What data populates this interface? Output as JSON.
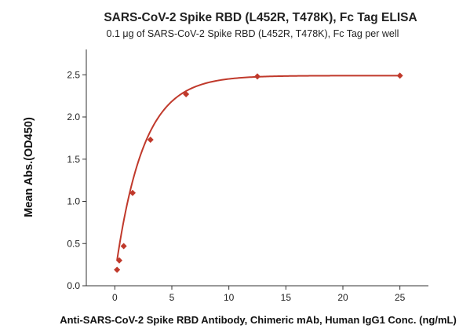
{
  "chart_data": {
    "type": "scatter",
    "title": "SARS-CoV-2 Spike RBD (L452R, T478K), Fc Tag ELISA",
    "subtitle": "0.1 μg of SARS-CoV-2 Spike RBD (L452R, T478K), Fc Tag per well",
    "xlabel": "Anti-SARS-CoV-2 Spike RBD Antibody, Chimeric mAb, Human IgG1 Conc. (ng/mL)",
    "ylabel": "Mean Abs.(OD450)",
    "xlim": [
      -2.5,
      27.5
    ],
    "ylim": [
      0,
      2.8
    ],
    "x_ticks": [
      0,
      5,
      10,
      15,
      20,
      25
    ],
    "x_tick_labels": [
      "0",
      "5",
      "10",
      "15",
      "20",
      "25"
    ],
    "y_ticks": [
      0.0,
      0.5,
      1.0,
      1.5,
      2.0,
      2.5
    ],
    "y_tick_labels": [
      "0.0",
      "0.5",
      "1.0",
      "1.5",
      "2.0",
      "2.5"
    ],
    "grid": false,
    "legend": "none",
    "series": [
      {
        "marker_color": "#c0392b",
        "line_color": "#c0392b",
        "x": [
          0.195,
          0.39,
          0.78,
          1.56,
          3.125,
          6.25,
          12.5,
          25
        ],
        "y": [
          0.19,
          0.3,
          0.47,
          1.1,
          1.73,
          2.27,
          2.48,
          2.49
        ],
        "fit": {
          "model": "exponential_rise",
          "y0": 0.12,
          "ymax": 2.49,
          "k": 0.41,
          "x_range": [
            0.195,
            25
          ]
        }
      }
    ]
  }
}
